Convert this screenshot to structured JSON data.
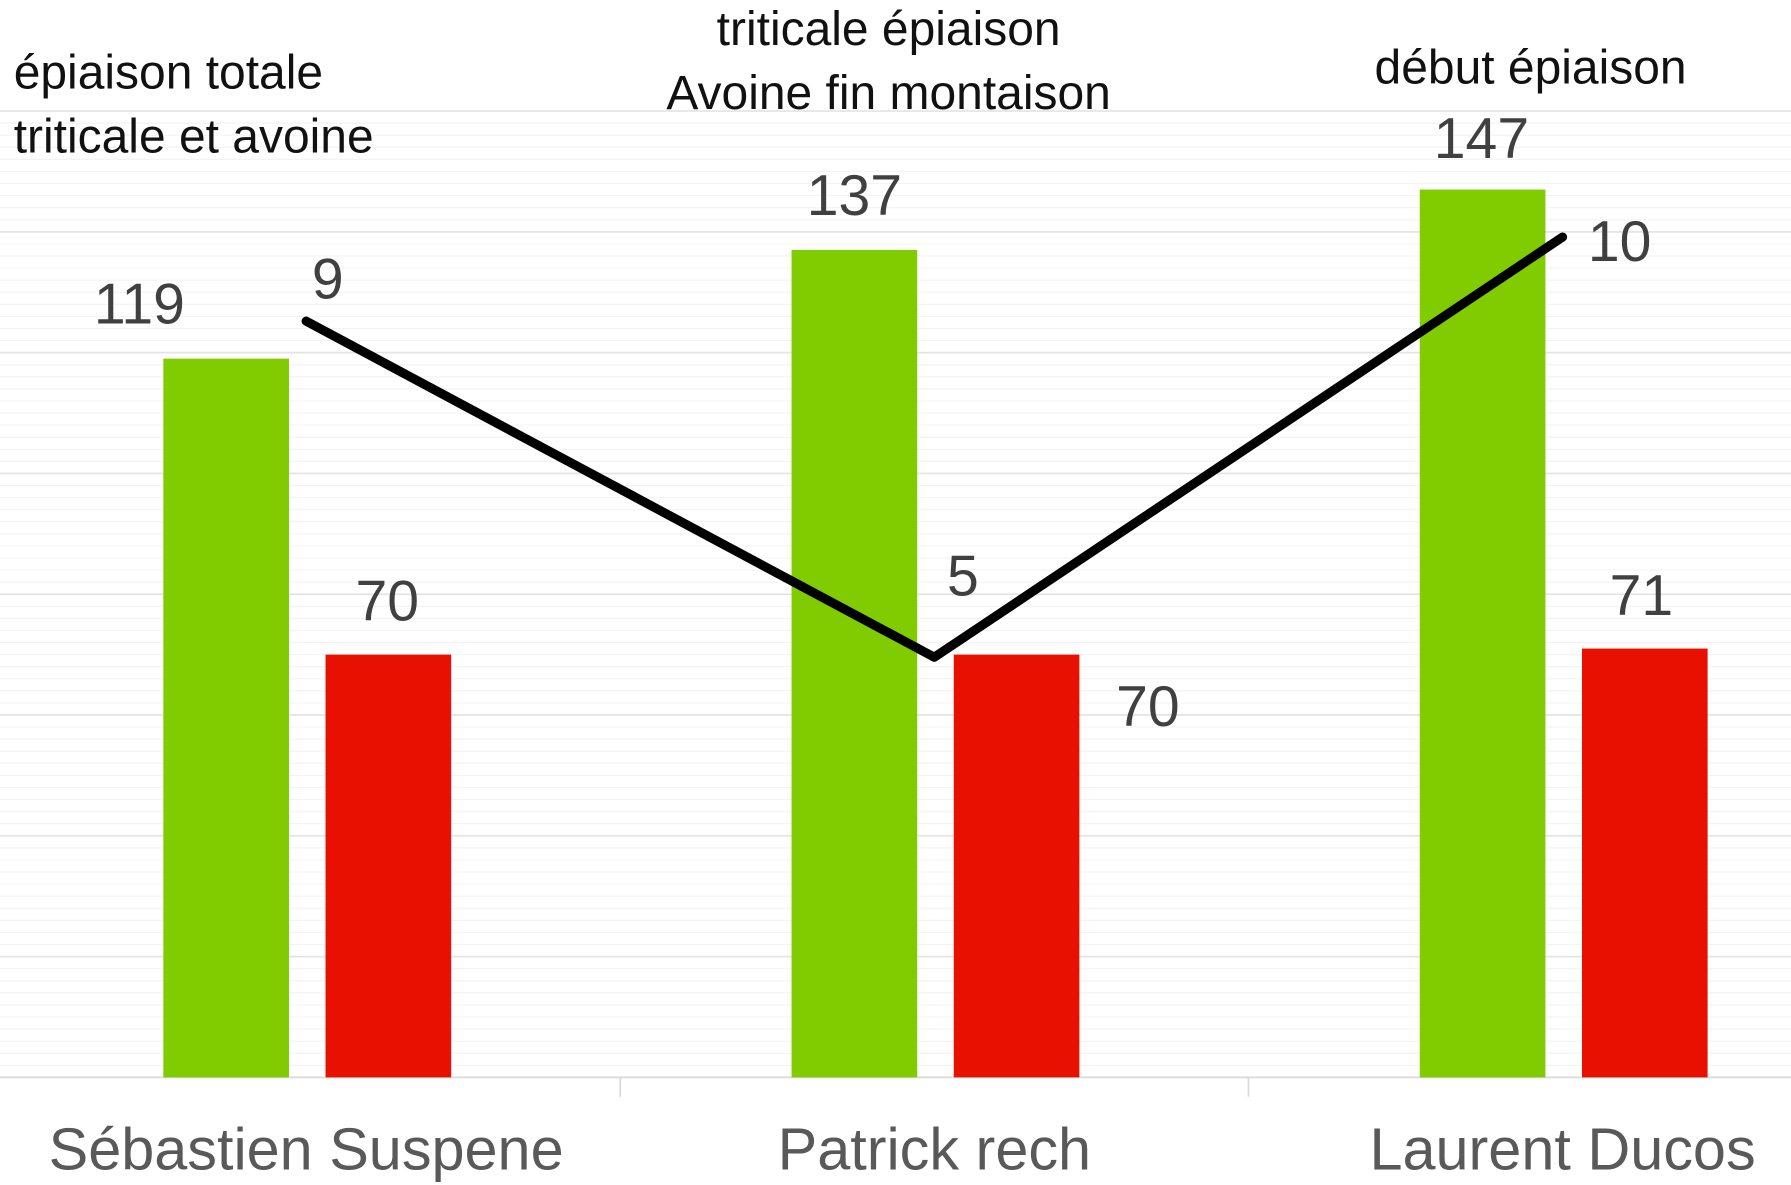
{
  "chart_data": {
    "type": "bar_line",
    "categories": [
      "Sébastien Suspene",
      "Patrick rech",
      "Laurent Ducos"
    ],
    "series": [
      {
        "color": "#80cc00",
        "values": [
          119,
          137,
          147
        ]
      },
      {
        "color": "#e81000",
        "values": [
          70,
          70,
          71
        ]
      },
      {
        "color": "#000000",
        "type": "line",
        "axis": "y2",
        "values": [
          9,
          5,
          10
        ]
      }
    ],
    "ylim": [
      0,
      160
    ],
    "yticks": [
      0,
      20,
      40,
      60,
      80,
      100,
      120,
      140,
      160
    ],
    "y2lim": [
      0,
      11.5
    ],
    "grid": true,
    "annotations": [
      [
        "épiaison totale",
        "triticale et avoine"
      ],
      [
        "triticale épiaison",
        "Avoine fin montaison"
      ],
      [
        "début épiaison"
      ]
    ]
  }
}
